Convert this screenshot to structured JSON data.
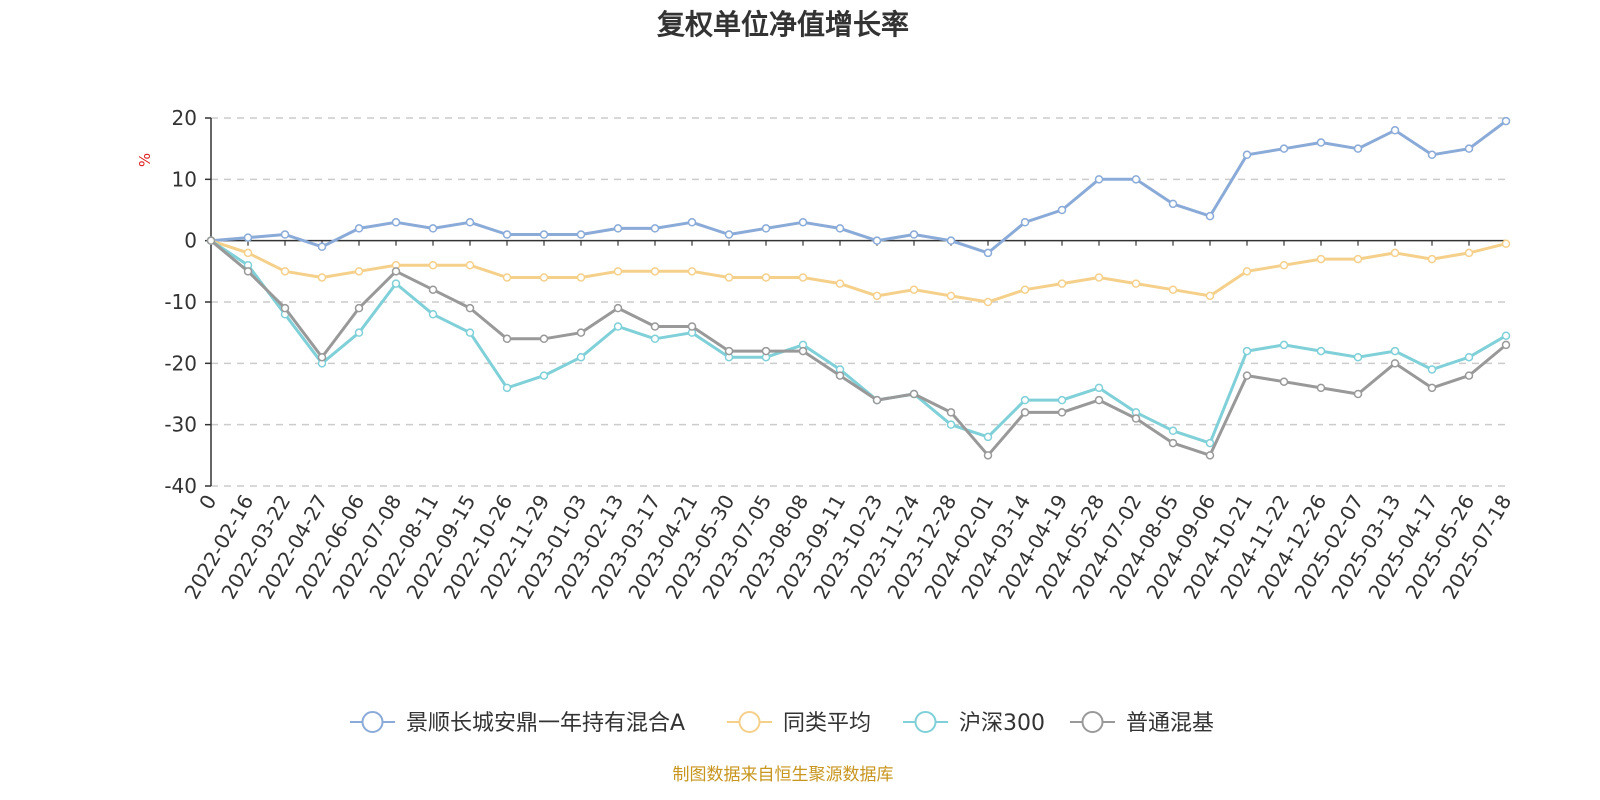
{
  "title": "复权单位净值增长率",
  "footer": "制图数据来自恒生聚源数据库",
  "chart_data": {
    "type": "line",
    "title": "复权单位净值增长率",
    "ylabel": "%",
    "ylim": [
      -40,
      20
    ],
    "yticks": [
      20,
      10,
      0,
      -10,
      -20,
      -30,
      -40
    ],
    "grid": true,
    "legend_position": "bottom",
    "x_tick_labels": [
      "0",
      "2022-02-16",
      "2022-03-22",
      "2022-04-27",
      "2022-06-06",
      "2022-07-08",
      "2022-08-11",
      "2022-09-15",
      "2022-10-26",
      "2022-11-29",
      "2023-01-03",
      "2023-02-13",
      "2023-03-17",
      "2023-04-21",
      "2023-05-30",
      "2023-07-05",
      "2023-08-08",
      "2023-09-11",
      "2023-10-23",
      "2023-11-24",
      "2023-12-28",
      "2024-02-01",
      "2024-03-14",
      "2024-04-19",
      "2024-05-28",
      "2024-07-02",
      "2024-08-05",
      "2024-09-06",
      "2024-10-21",
      "2024-11-22",
      "2024-12-26",
      "2025-02-07",
      "2025-03-13",
      "2025-04-17",
      "2025-05-26",
      "2025-07-18"
    ],
    "series": [
      {
        "name": "景顺长城安鼎一年持有混合A",
        "color": "#8aaad8",
        "values": [
          0,
          0.5,
          1,
          -1,
          2,
          3,
          2,
          3,
          1,
          1,
          1,
          2,
          2,
          3,
          1,
          2,
          3,
          2,
          0,
          1,
          0,
          -2,
          3,
          5,
          10,
          10,
          6,
          4,
          14,
          15,
          16,
          15,
          18,
          14,
          15,
          19.5
        ]
      },
      {
        "name": "同类平均",
        "color": "#f5d08a",
        "values": [
          0,
          -2,
          -5,
          -6,
          -5,
          -4,
          -4,
          -4,
          -6,
          -6,
          -6,
          -5,
          -5,
          -5,
          -6,
          -6,
          -6,
          -7,
          -9,
          -8,
          -9,
          -10,
          -8,
          -7,
          -6,
          -7,
          -8,
          -9,
          -5,
          -4,
          -3,
          -3,
          -2,
          -3,
          -2,
          -0.5
        ]
      },
      {
        "name": "沪深300",
        "color": "#7fd0d8",
        "values": [
          0,
          -4,
          -12,
          -20,
          -15,
          -7,
          -12,
          -15,
          -24,
          -22,
          -19,
          -14,
          -16,
          -15,
          -19,
          -19,
          -17,
          -21,
          -26,
          -25,
          -30,
          -32,
          -26,
          -26,
          -24,
          -28,
          -31,
          -33,
          -18,
          -17,
          -18,
          -19,
          -18,
          -21,
          -19,
          -15.5
        ]
      },
      {
        "name": "普通混基",
        "color": "#999999",
        "values": [
          0,
          -5,
          -11,
          -19,
          -11,
          -5,
          -8,
          -11,
          -16,
          -16,
          -15,
          -11,
          -14,
          -14,
          -18,
          -18,
          -18,
          -22,
          -26,
          -25,
          -28,
          -35,
          -28,
          -28,
          -26,
          -29,
          -33,
          -35,
          -22,
          -23,
          -24,
          -25,
          -20,
          -24,
          -22,
          -17
        ]
      }
    ]
  }
}
